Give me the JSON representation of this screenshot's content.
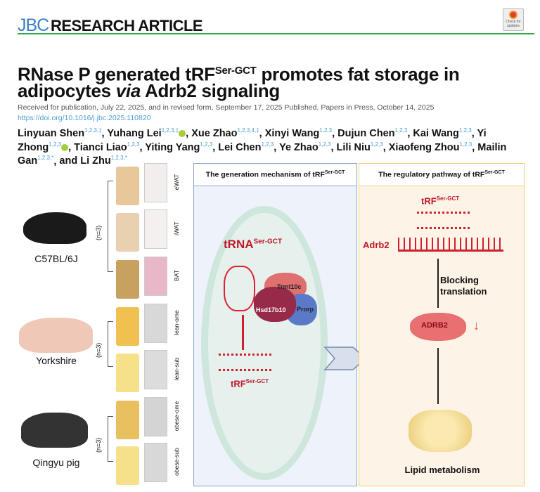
{
  "header": {
    "journal_logo": "JBC",
    "article_type": "RESEARCH ARTICLE",
    "badge": "Check for updates",
    "rule_color": "#2aa84a"
  },
  "title": {
    "line1_pre": "RNase P generated tRF",
    "line1_sup": "Ser-GCT",
    "line1_post": " promotes fat storage in",
    "line2_pre": "adipocytes ",
    "line2_italic": "via",
    "line2_post": " Adrb2 signaling"
  },
  "dates": "Received for publication, July 22, 2025, and in revised form, September 17, 2025  Published, Papers in Press, October 14, 2025",
  "doi": "https://doi.org/10.1016/j.jbc.2025.110820",
  "authors": [
    {
      "name": "Linyuan Shen",
      "aff": "1,2,3,‡"
    },
    {
      "name": "Yuhang Lei",
      "aff": "1,2,3,‡",
      "orcid": true
    },
    {
      "name": "Xue Zhao",
      "aff": "1,2,3,4,‡"
    },
    {
      "name": "Xinyi Wang",
      "aff": "1,2,3"
    },
    {
      "name": "Dujun Chen",
      "aff": "1,2,3"
    },
    {
      "name": "Kai Wang",
      "aff": "1,2,3"
    },
    {
      "name": "Yi Zhong",
      "aff": "1,2,3",
      "orcid": true
    },
    {
      "name": "Tianci Liao",
      "aff": "1,2,3"
    },
    {
      "name": "Yiting Yang",
      "aff": "1,2,3"
    },
    {
      "name": "Lei Chen",
      "aff": "1,2,3"
    },
    {
      "name": "Ye Zhao",
      "aff": "1,2,3"
    },
    {
      "name": "Lili Niu",
      "aff": "1,2,3"
    },
    {
      "name": "Xiaofeng Zhou",
      "aff": "1,2,3"
    },
    {
      "name": "Mailin Gan",
      "aff": "1,2,3,*"
    },
    {
      "name": "Li Zhu",
      "aff": "1,2,3,*",
      "prefix": "and "
    }
  ],
  "figure": {
    "animals": [
      "C57BL/6J",
      "Yorkshire",
      "Qingyu pig"
    ],
    "n_label": "(n=3)",
    "tissues": [
      "eWAT",
      "iWAT",
      "BAT",
      "lean-ome",
      "lean-sub",
      "obese-ome",
      "obese-sub"
    ],
    "middle": {
      "header": "The generation mechanism of tRF",
      "header_sup": "Ser-GCT",
      "trna": "tRNA",
      "trna_sup": "Ser-GCT",
      "proteins": [
        "Trmt10c",
        "Hsd17b10",
        "Prorp"
      ],
      "trf": "tRF",
      "trf_sup": "Ser-GCT"
    },
    "right": {
      "header": "The regulatory pathway of tRF",
      "header_sup": "Ser-GCT",
      "trf": "tRF",
      "trf_sup": "Ser-GCT",
      "gene": "Adrb2",
      "step": "Blocking translation",
      "protein": "ADRB2",
      "down_arrow": "↓",
      "outcome": "Lipid metabolism"
    }
  }
}
